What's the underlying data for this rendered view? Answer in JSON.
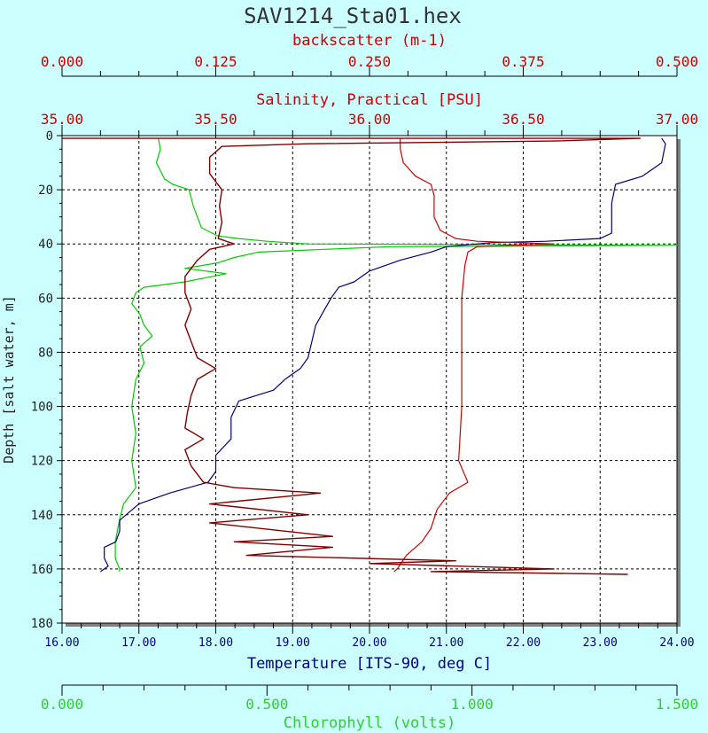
{
  "title": "SAV1214_Sta01.hex",
  "colors": {
    "background": "#ccffff",
    "plot_bg": "#ffffff",
    "frame_shadow": "#808080",
    "grid": "#000000",
    "backscatter": "#800000",
    "salinity": "#cc0000",
    "temperature": "#000080",
    "chlorophyll": "#00cc00",
    "label_red": "#cc0000",
    "label_blue": "#000080",
    "label_green": "#33cc33"
  },
  "chart_data": {
    "type": "line",
    "title": "SAV1214_Sta01.hex",
    "y_axis": {
      "label": "Depth [salt water, m]",
      "range": [
        0,
        180
      ],
      "inverted": true,
      "ticks": [
        "0",
        "20",
        "40",
        "60",
        "80",
        "100",
        "120",
        "140",
        "160",
        "180"
      ]
    },
    "x_axes": [
      {
        "id": "backscatter",
        "label": "backscatter (m-1)",
        "range": [
          0,
          0.5
        ],
        "position": "top-outer",
        "ticks": [
          "0.000",
          "0.125",
          "0.250",
          "0.375",
          "0.500"
        ]
      },
      {
        "id": "salinity",
        "label": "Salinity, Practical [PSU]",
        "range": [
          35.0,
          37.0
        ],
        "position": "top-inner",
        "ticks": [
          "35.00",
          "35.50",
          "36.00",
          "36.50",
          "37.00"
        ]
      },
      {
        "id": "temperature",
        "label": "Temperature [ITS-90, deg C]",
        "range": [
          16.0,
          24.0
        ],
        "position": "bottom-inner",
        "ticks": [
          "16.00",
          "17.00",
          "18.00",
          "19.00",
          "20.00",
          "21.00",
          "22.00",
          "23.00",
          "24.00"
        ]
      },
      {
        "id": "chlorophyll",
        "label": "Chlorophyll (volts)",
        "range": [
          0,
          1.5
        ],
        "position": "bottom-outer",
        "ticks": [
          "0.000",
          "0.500",
          "1.000",
          "1.500"
        ]
      }
    ],
    "grid": true,
    "series": [
      {
        "name": "backscatter (m-1)",
        "axis": "backscatter",
        "points": [
          [
            0.0,
            1
          ],
          [
            0.47,
            1
          ],
          [
            0.4,
            2
          ],
          [
            0.2,
            3
          ],
          [
            0.13,
            4
          ],
          [
            0.12,
            8
          ],
          [
            0.12,
            14
          ],
          [
            0.13,
            20
          ],
          [
            0.128,
            26
          ],
          [
            0.13,
            32
          ],
          [
            0.127,
            38
          ],
          [
            0.14,
            40
          ],
          [
            0.12,
            42
          ],
          [
            0.11,
            46
          ],
          [
            0.1,
            52
          ],
          [
            0.1,
            58
          ],
          [
            0.105,
            64
          ],
          [
            0.1,
            70
          ],
          [
            0.105,
            76
          ],
          [
            0.11,
            82
          ],
          [
            0.125,
            86
          ],
          [
            0.11,
            90
          ],
          [
            0.105,
            96
          ],
          [
            0.102,
            102
          ],
          [
            0.1,
            108
          ],
          [
            0.115,
            112
          ],
          [
            0.1,
            116
          ],
          [
            0.105,
            122
          ],
          [
            0.115,
            128
          ],
          [
            0.14,
            130
          ],
          [
            0.21,
            132
          ],
          [
            0.12,
            136
          ],
          [
            0.2,
            140
          ],
          [
            0.12,
            143
          ],
          [
            0.18,
            146
          ],
          [
            0.22,
            148
          ],
          [
            0.14,
            150
          ],
          [
            0.22,
            152
          ],
          [
            0.15,
            155
          ],
          [
            0.32,
            157
          ],
          [
            0.25,
            158
          ],
          [
            0.4,
            160
          ],
          [
            0.3,
            161
          ],
          [
            0.46,
            162
          ]
        ]
      },
      {
        "name": "Salinity, Practical [PSU]",
        "axis": "salinity",
        "points": [
          [
            36.1,
            1
          ],
          [
            36.1,
            5
          ],
          [
            36.11,
            10
          ],
          [
            36.15,
            15
          ],
          [
            36.2,
            18
          ],
          [
            36.21,
            22
          ],
          [
            36.21,
            30
          ],
          [
            36.23,
            35
          ],
          [
            36.28,
            38
          ],
          [
            36.35,
            39
          ],
          [
            36.6,
            40
          ],
          [
            36.35,
            41
          ],
          [
            36.32,
            43
          ],
          [
            36.31,
            48
          ],
          [
            36.3,
            60
          ],
          [
            36.3,
            80
          ],
          [
            36.3,
            100
          ],
          [
            36.29,
            120
          ],
          [
            36.32,
            128
          ],
          [
            36.26,
            132
          ],
          [
            36.22,
            138
          ],
          [
            36.2,
            145
          ],
          [
            36.17,
            150
          ],
          [
            36.12,
            155
          ],
          [
            36.09,
            160
          ],
          [
            36.08,
            161
          ]
        ]
      },
      {
        "name": "Temperature [ITS-90, deg C]",
        "axis": "temperature",
        "points": [
          [
            23.8,
            1
          ],
          [
            23.85,
            3
          ],
          [
            23.8,
            10
          ],
          [
            23.55,
            15
          ],
          [
            23.2,
            18
          ],
          [
            23.15,
            25
          ],
          [
            23.15,
            36
          ],
          [
            23.0,
            38
          ],
          [
            22.3,
            39
          ],
          [
            21.6,
            39.5
          ],
          [
            21.0,
            41
          ],
          [
            20.8,
            43
          ],
          [
            20.4,
            46
          ],
          [
            20.0,
            50
          ],
          [
            19.8,
            54
          ],
          [
            19.6,
            56
          ],
          [
            19.5,
            60
          ],
          [
            19.3,
            70
          ],
          [
            19.2,
            82
          ],
          [
            19.1,
            86
          ],
          [
            18.9,
            90
          ],
          [
            18.75,
            94
          ],
          [
            18.3,
            98
          ],
          [
            18.2,
            104
          ],
          [
            18.2,
            112
          ],
          [
            18.0,
            118
          ],
          [
            18.0,
            124
          ],
          [
            17.9,
            128
          ],
          [
            17.4,
            132
          ],
          [
            17.0,
            136
          ],
          [
            16.75,
            142
          ],
          [
            16.75,
            146
          ],
          [
            16.7,
            150
          ],
          [
            16.55,
            152
          ],
          [
            16.55,
            156
          ],
          [
            16.6,
            159
          ],
          [
            16.5,
            161
          ]
        ]
      },
      {
        "name": "Chlorophyll (volts)",
        "axis": "chlorophyll",
        "points": [
          [
            0.235,
            1
          ],
          [
            0.24,
            5
          ],
          [
            0.23,
            10
          ],
          [
            0.25,
            16
          ],
          [
            0.27,
            18
          ],
          [
            0.31,
            20
          ],
          [
            0.32,
            26
          ],
          [
            0.33,
            30
          ],
          [
            0.34,
            34
          ],
          [
            0.38,
            37
          ],
          [
            0.43,
            38
          ],
          [
            0.5,
            39
          ],
          [
            0.6,
            40
          ],
          [
            1.5,
            40.5
          ],
          [
            0.8,
            41
          ],
          [
            0.48,
            43
          ],
          [
            0.42,
            45
          ],
          [
            0.38,
            47
          ],
          [
            0.3,
            49
          ],
          [
            0.4,
            51
          ],
          [
            0.3,
            54
          ],
          [
            0.2,
            56
          ],
          [
            0.18,
            58
          ],
          [
            0.17,
            62
          ],
          [
            0.19,
            66
          ],
          [
            0.2,
            70
          ],
          [
            0.22,
            74
          ],
          [
            0.19,
            78
          ],
          [
            0.2,
            84
          ],
          [
            0.18,
            90
          ],
          [
            0.17,
            100
          ],
          [
            0.18,
            110
          ],
          [
            0.17,
            120
          ],
          [
            0.18,
            130
          ],
          [
            0.15,
            136
          ],
          [
            0.14,
            142
          ],
          [
            0.13,
            150
          ],
          [
            0.13,
            156
          ],
          [
            0.14,
            160
          ],
          [
            0.14,
            161
          ]
        ]
      }
    ]
  }
}
